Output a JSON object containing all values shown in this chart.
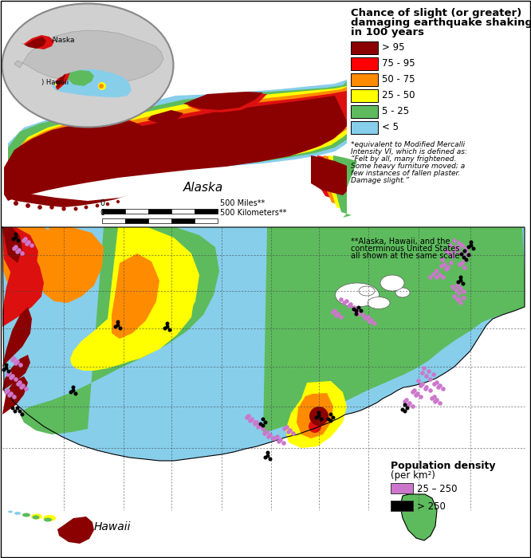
{
  "legend_title_line1": "Chance of slight (or greater)",
  "legend_title_line2": "damaging earthquake shaking",
  "legend_title_line3": "in 100 years",
  "hazard_legend": [
    {
      "label": "> 95",
      "color": "#8B0000"
    },
    {
      "label": "75 - 95",
      "color": "#FF0000"
    },
    {
      "label": "50 - 75",
      "color": "#FF8C00"
    },
    {
      "label": "25 - 50",
      "color": "#FFFF00"
    },
    {
      "label": "5 - 25",
      "color": "#5DBB5D"
    },
    {
      "label": "< 5",
      "color": "#87CEEB"
    }
  ],
  "pop_legend_title": "Population density",
  "pop_legend_subtitle": "(per km²)",
  "pop_legend": [
    {
      "label": "25 – 250",
      "color": "#CC77CC"
    },
    {
      "label": "> 250",
      "color": "#000000"
    }
  ],
  "footnote1_line1": "*equivalent to Modified Mercalli",
  "footnote1_line2": "Intensity VI, which is defined as:",
  "footnote1_line3": "“Felt by all, many frightened.",
  "footnote1_line4": "Some heavy furniture moved; a",
  "footnote1_line5": "few instances of fallen plaster.",
  "footnote1_line6": "Damage slight.”",
  "footnote2_line1": "**Alaska, Hawaii, and the",
  "footnote2_line2": "conterminous United States",
  "footnote2_line3": "all shown at the same scale",
  "alaska_label": "Alaska",
  "hawaii_label": "Hawaii",
  "scale_miles": "500 Miles**",
  "scale_km": "500 Kilometers**",
  "colors": {
    "very_high": "#8B0000",
    "high": "#DD1010",
    "medium_high": "#FF8C00",
    "medium": "#FFFF00",
    "low_medium": "#5DBB5D",
    "low": "#87CEEB",
    "white": "#FFFFFF",
    "purple": "#CC77CC",
    "black": "#000000",
    "ocean": "#FFFFFF",
    "inset_bg": "#C8C8C8",
    "inset_land": "#B8B8B8",
    "inset_border": "#888888"
  }
}
